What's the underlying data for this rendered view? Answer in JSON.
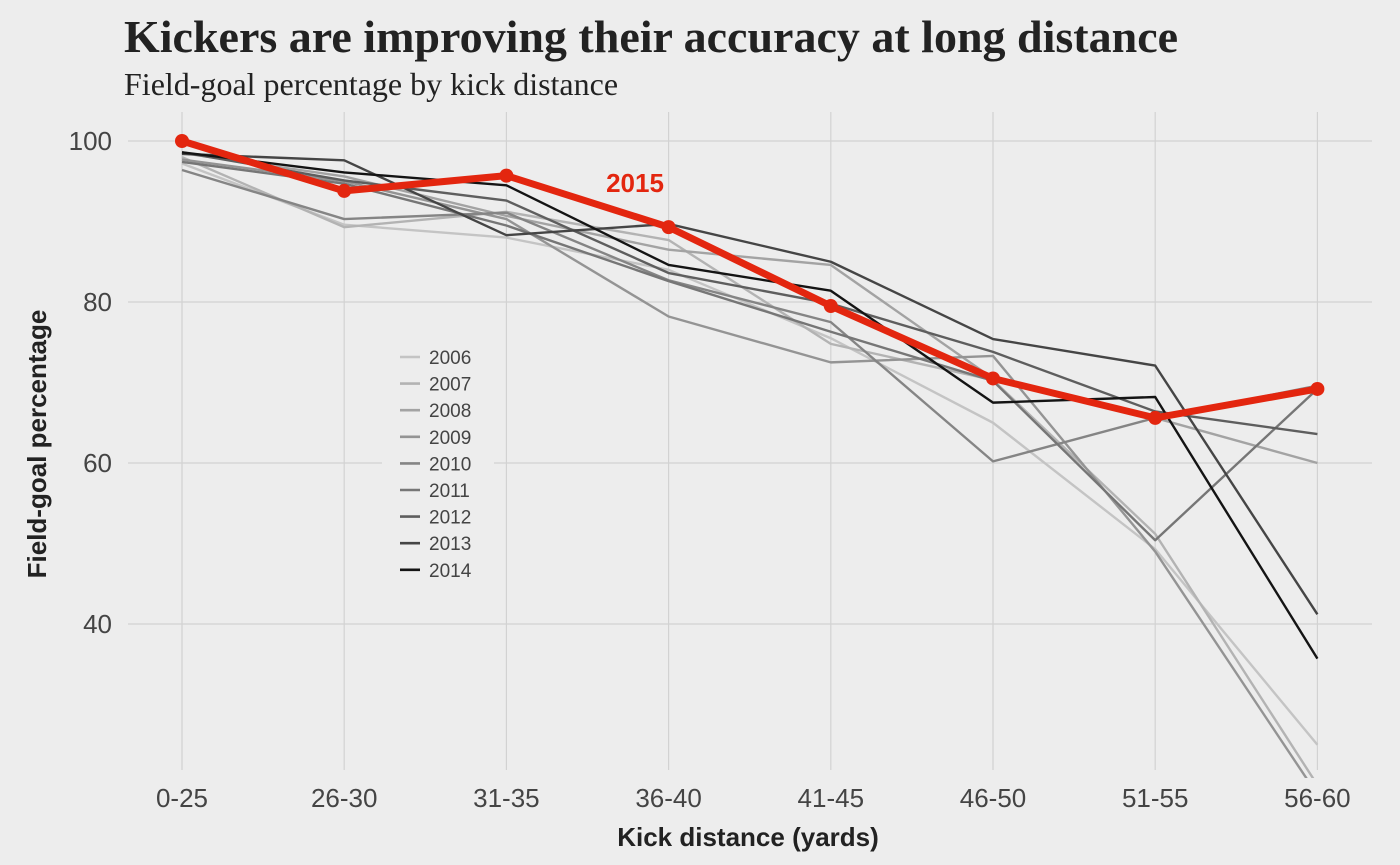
{
  "chart_data": {
    "type": "line",
    "title": "Kickers are improving their accuracy at long distance",
    "subtitle": "Field-goal percentage by kick distance",
    "xlabel": "Kick distance (yards)",
    "ylabel": "Field-goal percentage",
    "categories": [
      "0-25",
      "26-30",
      "31-35",
      "36-40",
      "41-45",
      "46-50",
      "51-55",
      "56-60"
    ],
    "ylim": [
      22,
      104
    ],
    "yticks": [
      40,
      60,
      80,
      100
    ],
    "grid": true,
    "legend_position": "center-left",
    "series": [
      {
        "name": "2006",
        "color": "#c4c4c4",
        "values": [
          97.2,
          89.6,
          88.0,
          84.0,
          75.5,
          65.0,
          49.3,
          25.0
        ]
      },
      {
        "name": "2007",
        "color": "#b3b3b3",
        "values": [
          98.0,
          89.3,
          91.2,
          87.7,
          74.8,
          70.3,
          51.2,
          20.0
        ]
      },
      {
        "name": "2008",
        "color": "#a3a3a3",
        "values": [
          98.5,
          95.6,
          90.7,
          86.5,
          84.6,
          70.5,
          65.6,
          60.0
        ]
      },
      {
        "name": "2009",
        "color": "#949494",
        "values": [
          97.7,
          95.0,
          90.3,
          78.2,
          72.5,
          73.3,
          49.0,
          18.8
        ]
      },
      {
        "name": "2010",
        "color": "#858585",
        "values": [
          96.4,
          90.3,
          91.1,
          82.7,
          77.5,
          60.2,
          65.6,
          69.6
        ]
      },
      {
        "name": "2011",
        "color": "#767676",
        "values": [
          97.4,
          94.7,
          89.5,
          82.6,
          76.3,
          70.2,
          50.4,
          69.2
        ]
      },
      {
        "name": "2012",
        "color": "#5e5e5e",
        "values": [
          98.6,
          95.1,
          92.6,
          83.6,
          79.8,
          73.8,
          66.4,
          63.6
        ]
      },
      {
        "name": "2013",
        "color": "#454545",
        "values": [
          98.4,
          97.6,
          88.3,
          89.7,
          85.0,
          75.4,
          72.1,
          41.2
        ]
      },
      {
        "name": "2014",
        "color": "#141414",
        "values": [
          98.6,
          96.1,
          94.5,
          84.6,
          81.4,
          67.5,
          68.2,
          35.7
        ]
      }
    ],
    "highlight": {
      "name": "2015",
      "color": "#e3260f",
      "values": [
        100.0,
        93.8,
        95.7,
        89.3,
        79.5,
        70.5,
        65.6,
        69.2
      ]
    }
  }
}
